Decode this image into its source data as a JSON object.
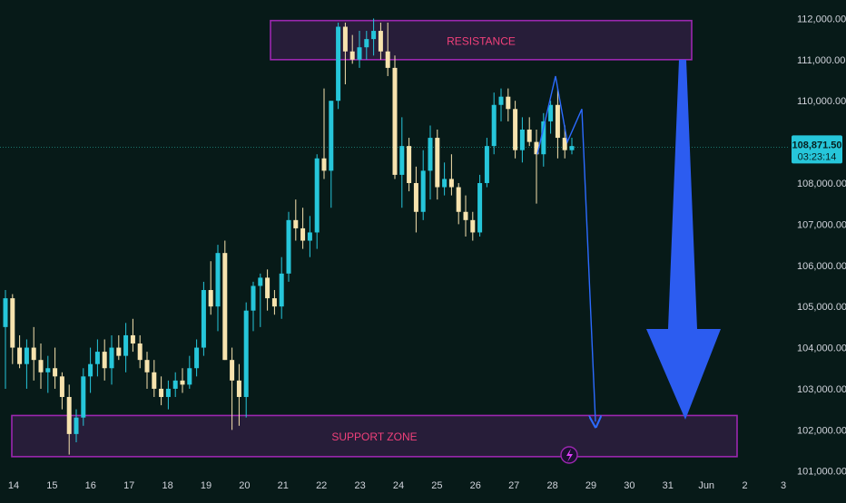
{
  "chart_data": {
    "type": "candlestick",
    "title": "",
    "xlabel": "",
    "ylabel": "",
    "ylim": [
      100950,
      112450
    ],
    "y_ticks": [
      "112,000.00",
      "111,000.00",
      "110,000.00",
      "108,000.00",
      "107,000.00",
      "106,000.00",
      "105,000.00",
      "104,000.00",
      "103,000.00",
      "102,000.00",
      "101,000.00"
    ],
    "x_ticks": [
      "14",
      "15",
      "16",
      "17",
      "18",
      "19",
      "20",
      "21",
      "22",
      "23",
      "24",
      "25",
      "26",
      "27",
      "28",
      "29",
      "30",
      "31",
      "Jun",
      "2",
      "3"
    ],
    "current_price": "108,871.50",
    "countdown": "03:23:14",
    "zones": [
      {
        "label": "RESISTANCE",
        "from": 111000,
        "to": 111950,
        "color": "#9c27b0",
        "text_color": "#f0407a"
      },
      {
        "label": "SUPPORT ZONE",
        "from": 101350,
        "to": 102350,
        "color": "#9c27b0",
        "text_color": "#f0407a"
      }
    ],
    "up_color": "#26c6da",
    "down_color": "#f7e3ae",
    "projection_color": "#2c6bff",
    "ohlc": [
      [
        104500,
        105400,
        103000,
        105200
      ],
      [
        105200,
        105300,
        103600,
        104000
      ],
      [
        104000,
        104300,
        103500,
        103600
      ],
      [
        103600,
        104200,
        103000,
        104000
      ],
      [
        104000,
        104500,
        103200,
        103700
      ],
      [
        103700,
        104100,
        103000,
        103400
      ],
      [
        103400,
        103800,
        102900,
        103500
      ],
      [
        103500,
        104000,
        103000,
        103300
      ],
      [
        103300,
        103400,
        102500,
        102800
      ],
      [
        102800,
        103100,
        101400,
        101900
      ],
      [
        101900,
        102500,
        101700,
        102300
      ],
      [
        102300,
        103500,
        102100,
        103300
      ],
      [
        103300,
        104000,
        102900,
        103600
      ],
      [
        103600,
        104200,
        103300,
        103900
      ],
      [
        103900,
        104200,
        103200,
        103500
      ],
      [
        103500,
        104300,
        103100,
        104000
      ],
      [
        104000,
        104300,
        103700,
        103800
      ],
      [
        103800,
        104600,
        103400,
        104300
      ],
      [
        104300,
        104700,
        103900,
        104100
      ],
      [
        104100,
        104300,
        103500,
        103700
      ],
      [
        103700,
        103900,
        103000,
        103400
      ],
      [
        103400,
        103700,
        102800,
        103000
      ],
      [
        103000,
        103300,
        102600,
        102800
      ],
      [
        102800,
        103200,
        102500,
        103000
      ],
      [
        103000,
        103400,
        102800,
        103200
      ],
      [
        103200,
        103500,
        102900,
        103100
      ],
      [
        103100,
        103800,
        103000,
        103500
      ],
      [
        103500,
        104200,
        103300,
        104000
      ],
      [
        104000,
        105600,
        103800,
        105400
      ],
      [
        105400,
        106100,
        104800,
        105000
      ],
      [
        105000,
        106500,
        104400,
        106300
      ],
      [
        106300,
        106600,
        103700,
        103700
      ],
      [
        103700,
        104000,
        102000,
        103200
      ],
      [
        103200,
        103600,
        102100,
        102800
      ],
      [
        102800,
        105100,
        102300,
        104900
      ],
      [
        104900,
        105600,
        104400,
        105500
      ],
      [
        105500,
        105800,
        104500,
        105700
      ],
      [
        105700,
        105900,
        104900,
        105200
      ],
      [
        105200,
        105400,
        104800,
        105000
      ],
      [
        105000,
        106200,
        104700,
        105800
      ],
      [
        105800,
        107300,
        105600,
        107100
      ],
      [
        107100,
        107600,
        106600,
        106900
      ],
      [
        106900,
        107400,
        106400,
        106600
      ],
      [
        106600,
        107200,
        106200,
        106800
      ],
      [
        106800,
        108700,
        106400,
        108600
      ],
      [
        108600,
        110300,
        108100,
        108300
      ],
      [
        108300,
        110000,
        107400,
        110000
      ],
      [
        110000,
        111900,
        109800,
        111800
      ],
      [
        111800,
        111900,
        110400,
        111200
      ],
      [
        111200,
        111600,
        110900,
        111000
      ],
      [
        111000,
        111700,
        110800,
        111300
      ],
      [
        111300,
        111700,
        111000,
        111500
      ],
      [
        111500,
        112000,
        111100,
        111700
      ],
      [
        111700,
        111900,
        111000,
        111200
      ],
      [
        111200,
        111900,
        110600,
        110800
      ],
      [
        110800,
        111100,
        108100,
        108200
      ],
      [
        108200,
        109600,
        107400,
        108900
      ],
      [
        108900,
        109100,
        107800,
        108000
      ],
      [
        108000,
        108400,
        106800,
        107300
      ],
      [
        107300,
        108800,
        107100,
        108300
      ],
      [
        108300,
        109400,
        107600,
        109100
      ],
      [
        109100,
        109300,
        107600,
        107900
      ],
      [
        107900,
        108500,
        107700,
        108100
      ],
      [
        108100,
        108700,
        107700,
        107900
      ],
      [
        107900,
        108000,
        107000,
        107300
      ],
      [
        107300,
        107700,
        106700,
        107100
      ],
      [
        107100,
        107300,
        106600,
        106800
      ],
      [
        106800,
        108200,
        106700,
        108000
      ],
      [
        108000,
        109100,
        107900,
        108900
      ],
      [
        108900,
        110200,
        108700,
        109900
      ],
      [
        109900,
        110300,
        109500,
        110100
      ],
      [
        110100,
        110300,
        109500,
        109800
      ],
      [
        109800,
        110000,
        108600,
        108800
      ],
      [
        108800,
        109600,
        108500,
        109300
      ],
      [
        109300,
        109600,
        108900,
        109000
      ],
      [
        109000,
        109300,
        107500,
        108700
      ],
      [
        108700,
        109700,
        108400,
        109500
      ],
      [
        109500,
        110000,
        109200,
        109900
      ],
      [
        109900,
        110300,
        108600,
        109100
      ],
      [
        109100,
        109400,
        108600,
        108800
      ],
      [
        108800,
        109100,
        108700,
        108900
      ]
    ],
    "projection_path": [
      [
        108700,
        0
      ],
      [
        110600,
        1.5
      ],
      [
        109000,
        3
      ],
      [
        109800,
        5.3
      ],
      [
        102200,
        6.3
      ]
    ],
    "big_arrow": {
      "from": 111000,
      "to": 102250
    }
  }
}
